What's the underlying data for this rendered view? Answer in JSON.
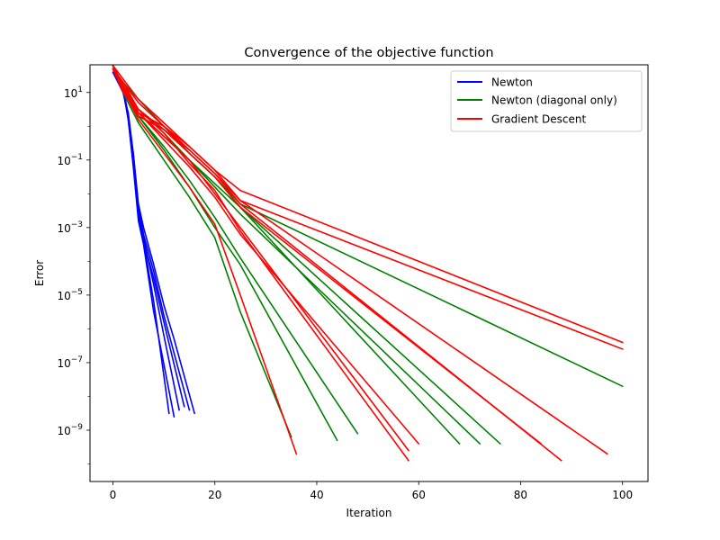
{
  "chart_data": {
    "type": "line",
    "title": "Convergence of the objective function",
    "xlabel": "Iteration",
    "ylabel": "Error",
    "xlim": [
      -4.5,
      105
    ],
    "ylim_exp": [
      -10.52,
      1.82
    ],
    "yscale": "log",
    "grid": false,
    "legend_placement": "top-right",
    "xticks": [
      0,
      20,
      40,
      60,
      80,
      100
    ],
    "xtick_labels": [
      "0",
      "20",
      "40",
      "60",
      "80",
      "100"
    ],
    "yticks_exp": [
      -9,
      -7,
      -5,
      -3,
      -1,
      1
    ],
    "ytick_base": "10",
    "ytick_exps": [
      "−9",
      "−7",
      "−5",
      "−3",
      "−1",
      "1"
    ],
    "legend": [
      "Newton",
      "Newton (diagonal only)",
      "Gradient Descent"
    ],
    "colors": {
      "Newton": "#0000ff",
      "Newton (diagonal only)": "#008000",
      "Gradient Descent": "#ff0000"
    },
    "series": [
      {
        "name": "Newton",
        "runs": [
          {
            "x": [
              0,
              2,
              3,
              4,
              5,
              6,
              8,
              12
            ],
            "y_exp": [
              1.7,
              1.1,
              0.2,
              -1.2,
              -2.8,
              -3.5,
              -5.5,
              -8.6
            ]
          },
          {
            "x": [
              0,
              2,
              3,
              4,
              5,
              6,
              8,
              10,
              13
            ],
            "y_exp": [
              1.8,
              1.2,
              0.3,
              -1.0,
              -2.5,
              -3.3,
              -4.7,
              -6.2,
              -8.4
            ]
          },
          {
            "x": [
              0,
              2,
              3,
              4,
              5,
              6,
              8,
              10,
              15
            ],
            "y_exp": [
              1.7,
              1.0,
              0.4,
              -0.8,
              -2.4,
              -3.2,
              -4.3,
              -5.6,
              -8.4
            ]
          },
          {
            "x": [
              0,
              2,
              3,
              4,
              5,
              6,
              8,
              10,
              12,
              16
            ],
            "y_exp": [
              1.8,
              1.1,
              0.2,
              -0.8,
              -2.3,
              -3.0,
              -4.1,
              -5.3,
              -6.3,
              -8.5
            ]
          },
          {
            "x": [
              0,
              2,
              3,
              4,
              5,
              6,
              8,
              10,
              14
            ],
            "y_exp": [
              1.6,
              1.0,
              0.3,
              -1.0,
              -2.6,
              -3.4,
              -4.5,
              -5.8,
              -8.3
            ]
          },
          {
            "x": [
              0,
              2,
              3,
              4,
              5,
              6,
              8,
              11
            ],
            "y_exp": [
              1.7,
              1.1,
              0.2,
              -1.1,
              -2.7,
              -3.4,
              -5.2,
              -8.5
            ]
          }
        ]
      },
      {
        "name": "Newton (diagonal only)",
        "runs": [
          {
            "x": [
              0,
              2,
              5,
              10,
              15,
              20,
              25,
              100
            ],
            "y_exp": [
              1.7,
              1.3,
              0.8,
              0.0,
              -0.8,
              -1.5,
              -2.3,
              -7.7
            ]
          },
          {
            "x": [
              0,
              2,
              5,
              10,
              15,
              20,
              25,
              68
            ],
            "y_exp": [
              1.8,
              1.2,
              0.5,
              -0.1,
              -0.8,
              -1.5,
              -2.4,
              -9.4
            ]
          },
          {
            "x": [
              0,
              2,
              5,
              10,
              15,
              20,
              25,
              72
            ],
            "y_exp": [
              1.7,
              1.1,
              0.5,
              -0.2,
              -1.0,
              -1.8,
              -2.6,
              -9.4
            ]
          },
          {
            "x": [
              0,
              2,
              5,
              10,
              15,
              20,
              25,
              76
            ],
            "y_exp": [
              1.8,
              1.0,
              0.4,
              -0.3,
              -1.0,
              -1.7,
              -2.4,
              -9.4
            ]
          },
          {
            "x": [
              0,
              2,
              5,
              10,
              15,
              20,
              25,
              48
            ],
            "y_exp": [
              1.7,
              1.2,
              0.3,
              -0.6,
              -1.6,
              -2.7,
              -3.9,
              -9.1
            ]
          },
          {
            "x": [
              0,
              2,
              5,
              10,
              15,
              20,
              25,
              44
            ],
            "y_exp": [
              1.8,
              1.1,
              0.3,
              -0.7,
              -1.8,
              -3.0,
              -4.1,
              -9.3
            ]
          },
          {
            "x": [
              0,
              2,
              5,
              10,
              15,
              20,
              25,
              35
            ],
            "y_exp": [
              1.7,
              1.0,
              0.1,
              -1.0,
              -2.1,
              -3.3,
              -5.5,
              -9.2
            ]
          }
        ]
      },
      {
        "name": "Gradient Descent",
        "runs": [
          {
            "x": [
              0,
              2,
              5,
              10,
              15,
              20,
              25,
              100
            ],
            "y_exp": [
              1.8,
              1.4,
              0.8,
              0.1,
              -0.6,
              -1.3,
              -1.9,
              -6.4
            ]
          },
          {
            "x": [
              0,
              2,
              5,
              10,
              15,
              20,
              25,
              100
            ],
            "y_exp": [
              1.7,
              1.3,
              0.7,
              0.0,
              -0.7,
              -1.4,
              -2.2,
              -6.6
            ]
          },
          {
            "x": [
              0,
              2,
              5,
              10,
              15,
              20,
              25,
              36
            ],
            "y_exp": [
              1.7,
              1.1,
              0.2,
              -0.8,
              -1.8,
              -2.9,
              -5.0,
              -9.7
            ]
          },
          {
            "x": [
              0,
              2,
              5,
              10,
              15,
              20,
              25,
              58
            ],
            "y_exp": [
              1.8,
              1.2,
              0.4,
              -0.3,
              -1.0,
              -2.0,
              -3.0,
              -9.6
            ]
          },
          {
            "x": [
              0,
              2,
              5,
              10,
              15,
              20,
              25,
              58
            ],
            "y_exp": [
              1.7,
              1.3,
              0.5,
              -0.2,
              -1.1,
              -1.9,
              -3.1,
              -9.9
            ]
          },
          {
            "x": [
              0,
              2,
              5,
              10,
              15,
              20,
              25,
              60
            ],
            "y_exp": [
              1.8,
              1.2,
              0.4,
              -0.4,
              -1.2,
              -2.1,
              -3.2,
              -9.4
            ]
          },
          {
            "x": [
              0,
              2,
              5,
              10,
              15,
              20,
              25,
              84
            ],
            "y_exp": [
              1.7,
              1.2,
              0.5,
              -0.1,
              -0.8,
              -1.5,
              -2.4,
              -9.4
            ]
          },
          {
            "x": [
              0,
              2,
              5,
              10,
              15,
              20,
              25,
              88
            ],
            "y_exp": [
              1.8,
              1.1,
              0.3,
              -0.1,
              -0.7,
              -1.4,
              -2.3,
              -9.9
            ]
          },
          {
            "x": [
              0,
              2,
              5,
              10,
              15,
              20,
              25,
              97
            ],
            "y_exp": [
              1.7,
              1.0,
              0.4,
              0.0,
              -0.6,
              -1.3,
              -2.2,
              -9.7
            ]
          }
        ]
      }
    ]
  }
}
